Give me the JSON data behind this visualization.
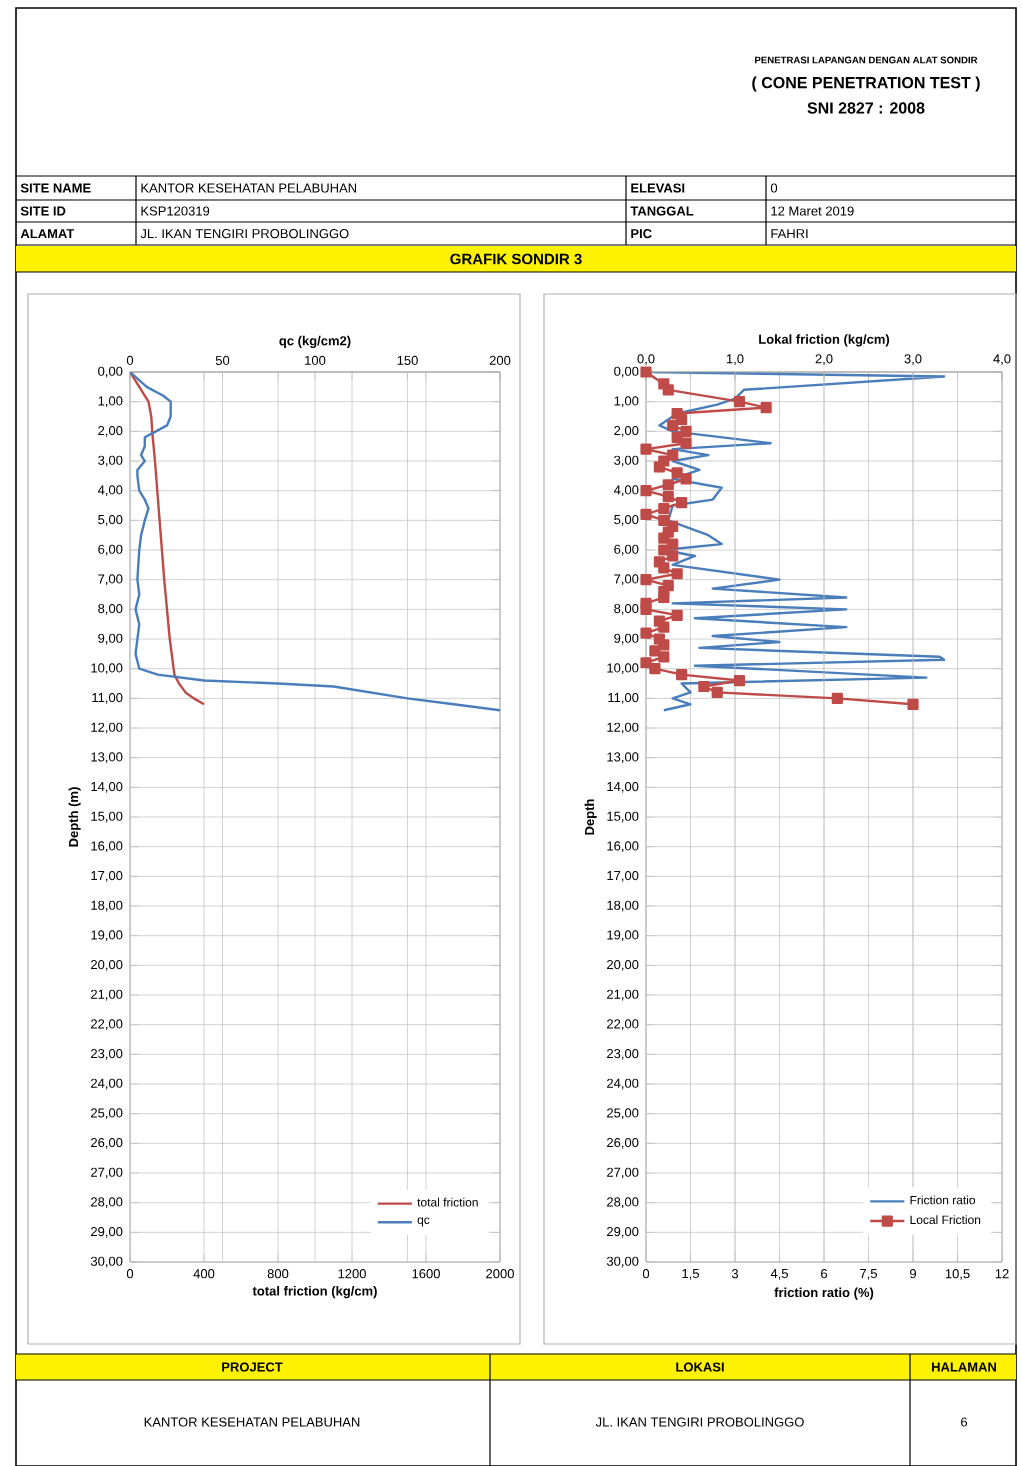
{
  "chart_data": [
    {
      "type": "line",
      "title": "GRAFIK SONDIR 3",
      "x2label": "qc (kg/cm2)",
      "xlabel": "total friction (kg/cm)",
      "ylabel": "Depth (m)",
      "xlim": [
        0,
        2000
      ],
      "xticks": [
        0,
        400,
        800,
        1200,
        1600,
        2000
      ],
      "x2lim": [
        0,
        200
      ],
      "x2ticks": [
        0,
        50,
        100,
        150,
        200
      ],
      "ylim": [
        30,
        0
      ],
      "yticks": [
        {
          "value": 0,
          "label": "0,00"
        },
        {
          "value": 1,
          "label": "1,00"
        },
        {
          "value": 2,
          "label": "2,00"
        },
        {
          "value": 3,
          "label": "3,00"
        },
        {
          "value": 4,
          "label": "4,00"
        },
        {
          "value": 5,
          "label": "5,00"
        },
        {
          "value": 6,
          "label": "6,00"
        },
        {
          "value": 7,
          "label": "7,00"
        },
        {
          "value": 8,
          "label": "8,00"
        },
        {
          "value": 9,
          "label": "9,00"
        },
        {
          "value": 10,
          "label": "10,00"
        },
        {
          "value": 11,
          "label": "11,00"
        },
        {
          "value": 12,
          "label": "12,00"
        },
        {
          "value": 13,
          "label": "13,00"
        },
        {
          "value": 14,
          "label": "14,00"
        },
        {
          "value": 15,
          "label": "15,00"
        },
        {
          "value": 16,
          "label": "16,00"
        },
        {
          "value": 17,
          "label": "17,00"
        },
        {
          "value": 18,
          "label": "18,00"
        },
        {
          "value": 19,
          "label": "19,00"
        },
        {
          "value": 20,
          "label": "20,00"
        },
        {
          "value": 21,
          "label": "21,00"
        },
        {
          "value": 22,
          "label": "22,00"
        },
        {
          "value": 23,
          "label": "23,00"
        },
        {
          "value": 24,
          "label": "24,00"
        },
        {
          "value": 25,
          "label": "25,00"
        },
        {
          "value": 26,
          "label": "26,00"
        },
        {
          "value": 27,
          "label": "27,00"
        },
        {
          "value": 28,
          "label": "28,00"
        },
        {
          "value": 29,
          "label": "29,00"
        },
        {
          "value": 30,
          "label": "30,00"
        }
      ],
      "grid": true,
      "legend": "bottom right",
      "series": [
        {
          "name": "total friction",
          "color": "#be4b48",
          "x": [
            0,
            50,
            100,
            115,
            120,
            135,
            160,
            185,
            215,
            240,
            265,
            300,
            345,
            400
          ],
          "values": [
            0,
            0.5,
            1.0,
            1.5,
            2.0,
            3.0,
            5.0,
            7.0,
            9.0,
            10.2,
            10.5,
            10.8,
            11.0,
            11.2
          ]
        },
        {
          "name": "qc",
          "color": "#4a7ebb",
          "axis": "x2",
          "x": [
            0,
            9,
            18,
            22,
            22,
            20,
            14,
            8,
            8,
            6,
            8,
            4,
            4,
            5,
            8,
            10,
            8,
            6,
            5,
            4,
            5,
            3,
            5,
            4,
            3,
            5,
            15,
            40,
            80,
            110,
            130,
            150,
            175,
            200
          ],
          "values": [
            0,
            0.5,
            0.8,
            1.0,
            1.5,
            1.8,
            2.0,
            2.2,
            2.5,
            2.8,
            3.0,
            3.3,
            3.5,
            4.0,
            4.3,
            4.6,
            5.0,
            5.5,
            6.0,
            7.0,
            7.5,
            8.0,
            8.5,
            9.0,
            9.5,
            10.0,
            10.2,
            10.4,
            10.5,
            10.6,
            10.8,
            11.0,
            11.2,
            11.4
          ]
        }
      ],
      "annotations": [
        "PENETRASI LAPANGAN DENGAN ALAT SONDIR",
        "( CONE PENETRATION TEST )",
        "SNI  2827 : 2008",
        "SITE NAME",
        "KANTOR KESEHATAN PELABUHAN",
        "ELEVASI",
        "0",
        "SITE ID",
        "KSP120319",
        "TANGGAL",
        "12 Maret 2019",
        "ALAMAT",
        "JL. IKAN TENGIRI PROBOLINGGO",
        "PIC",
        "FAHRI",
        "PROJECT",
        "LOKASI",
        "HALAMAN",
        "KANTOR KESEHATAN PELABUHAN",
        "JL. IKAN TENGIRI PROBOLINGGO",
        "6"
      ]
    },
    {
      "type": "line",
      "x2label": "Lokal friction (kg/cm)",
      "xlabel": "friction ratio (%)",
      "ylabel": "Depth",
      "xlim": [
        0,
        12
      ],
      "xticks": [
        0,
        {
          "value": 1.5,
          "label": "1,5"
        },
        3,
        {
          "value": 4.5,
          "label": "4,5"
        },
        6,
        {
          "value": 7.5,
          "label": "7,5"
        },
        9,
        {
          "value": 10.5,
          "label": "10,5"
        },
        12
      ],
      "x2lim": [
        0,
        4
      ],
      "x2ticks": [
        {
          "value": 0,
          "label": "0,0"
        },
        {
          "value": 1,
          "label": "1,0"
        },
        {
          "value": 2,
          "label": "2,0"
        },
        {
          "value": 3,
          "label": "3,0"
        },
        {
          "value": 4,
          "label": "4,0"
        }
      ],
      "ylim": [
        30,
        0
      ],
      "yticks": [
        {
          "value": 0,
          "label": "0,00"
        },
        {
          "value": 1,
          "label": "1,00"
        },
        {
          "value": 2,
          "label": "2,00"
        },
        {
          "value": 3,
          "label": "3,00"
        },
        {
          "value": 4,
          "label": "4,00"
        },
        {
          "value": 5,
          "label": "5,00"
        },
        {
          "value": 6,
          "label": "6,00"
        },
        {
          "value": 7,
          "label": "7,00"
        },
        {
          "value": 8,
          "label": "8,00"
        },
        {
          "value": 9,
          "label": "9,00"
        },
        {
          "value": 10,
          "label": "10,00"
        },
        {
          "value": 11,
          "label": "11,00"
        },
        {
          "value": 12,
          "label": "12,00"
        },
        {
          "value": 13,
          "label": "13,00"
        },
        {
          "value": 14,
          "label": "14,00"
        },
        {
          "value": 15,
          "label": "15,00"
        },
        {
          "value": 16,
          "label": "16,00"
        },
        {
          "value": 17,
          "label": "17,00"
        },
        {
          "value": 18,
          "label": "18,00"
        },
        {
          "value": 19,
          "label": "19,00"
        },
        {
          "value": 20,
          "label": "20,00"
        },
        {
          "value": 21,
          "label": "21,00"
        },
        {
          "value": 22,
          "label": "22,00"
        },
        {
          "value": 23,
          "label": "23,00"
        },
        {
          "value": 24,
          "label": "24,00"
        },
        {
          "value": 25,
          "label": "25,00"
        },
        {
          "value": 26,
          "label": "26,00"
        },
        {
          "value": 27,
          "label": "27,00"
        },
        {
          "value": 28,
          "label": "28,00"
        },
        {
          "value": 29,
          "label": "29,00"
        },
        {
          "value": 30,
          "label": "30,00"
        }
      ],
      "grid": true,
      "legend": "bottom right",
      "series": [
        {
          "name": "Friction ratio",
          "color": "#4a7ebb",
          "x": [
            0,
            10.05,
            3.3,
            3.0,
            2.4,
            1.05,
            0.45,
            0.9,
            4.2,
            0.9,
            2.1,
            0.9,
            1.8,
            0.9,
            2.55,
            2.25,
            0.9,
            0.75,
            2.1,
            2.55,
            0.6,
            1.65,
            0.9,
            4.5,
            2.25,
            6.75,
            0.9,
            6.75,
            1.65,
            6.75,
            2.25,
            4.5,
            1.8,
            9.9,
            10.05,
            1.65,
            9.45,
            1.2,
            1.5,
            0.9,
            1.5,
            0.6
          ],
          "values": [
            0,
            0.15,
            0.6,
            0.9,
            1.1,
            1.4,
            1.8,
            2.0,
            2.4,
            2.6,
            2.8,
            3.0,
            3.3,
            3.6,
            3.9,
            4.3,
            4.5,
            5.0,
            5.5,
            5.8,
            6.0,
            6.2,
            6.5,
            7.0,
            7.3,
            7.6,
            7.8,
            8.0,
            8.3,
            8.6,
            8.9,
            9.1,
            9.3,
            9.6,
            9.7,
            9.9,
            10.3,
            10.5,
            10.8,
            11.0,
            11.2,
            11.4
          ]
        },
        {
          "name": "Local Friction",
          "color": "#be4b48",
          "axis": "x2",
          "marker": "square",
          "x": [
            0,
            0.2,
            0.25,
            1.05,
            1.35,
            0.35,
            0.4,
            0.3,
            0.45,
            0.35,
            0.45,
            0,
            0.3,
            0.2,
            0.15,
            0.35,
            0.45,
            0.25,
            0,
            0.25,
            0.4,
            0.2,
            0,
            0.2,
            0.3,
            0.25,
            0.2,
            0.3,
            0.2,
            0.3,
            0.15,
            0.2,
            0.35,
            0,
            0.25,
            0.2,
            0.2,
            0,
            0,
            0.35,
            0.15,
            0.2,
            0,
            0.15,
            0.2,
            0.1,
            0.2,
            0,
            0.1,
            0.4,
            1.05,
            0.65,
            0.8,
            2.15,
            3.0
          ],
          "values": [
            0,
            0.4,
            0.6,
            1.0,
            1.2,
            1.4,
            1.6,
            1.8,
            2.0,
            2.2,
            2.4,
            2.6,
            2.8,
            3.0,
            3.2,
            3.4,
            3.6,
            3.8,
            4.0,
            4.2,
            4.4,
            4.6,
            4.8,
            5.0,
            5.2,
            5.4,
            5.6,
            5.8,
            6.0,
            6.2,
            6.4,
            6.6,
            6.8,
            7.0,
            7.2,
            7.4,
            7.6,
            7.8,
            8.0,
            8.2,
            8.4,
            8.6,
            8.8,
            9.0,
            9.2,
            9.4,
            9.6,
            9.8,
            10.0,
            10.2,
            10.4,
            10.6,
            10.8,
            11.0,
            11.2
          ]
        }
      ]
    }
  ]
}
